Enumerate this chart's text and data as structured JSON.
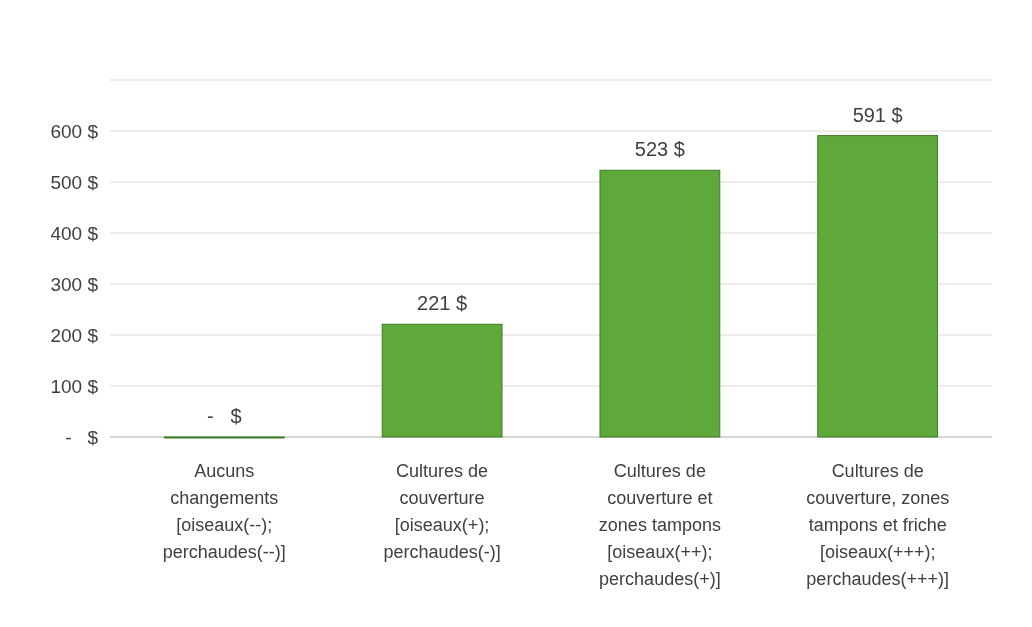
{
  "chart_data": {
    "type": "bar",
    "categories": [
      "Aucuns changements [oiseaux(--); perchaudes(--)]",
      "Cultures de couverture [oiseaux(+); perchaudes(-)]",
      "Cultures de couverture et zones tampons [oiseaux(++); perchaudes(+)]",
      "Cultures de couverture, zones tampons et friche [oiseaux(+++); perchaudes(+++)]"
    ],
    "values": [
      0,
      221,
      523,
      591
    ],
    "value_labels": [
      "-   $",
      "221 $",
      "523 $",
      "591 $"
    ],
    "color": "#5fa83a",
    "ylim": [
      0,
      700
    ],
    "yticks": [
      {
        "value": 0,
        "label": "-   $"
      },
      {
        "value": 100,
        "label": "100 $"
      },
      {
        "value": 200,
        "label": "200 $"
      },
      {
        "value": 300,
        "label": "300 $"
      },
      {
        "value": 400,
        "label": "400 $"
      },
      {
        "value": 500,
        "label": "500 $"
      },
      {
        "value": 600,
        "label": "600 $"
      },
      {
        "value": 700,
        "label": null
      }
    ],
    "grid": "y"
  }
}
